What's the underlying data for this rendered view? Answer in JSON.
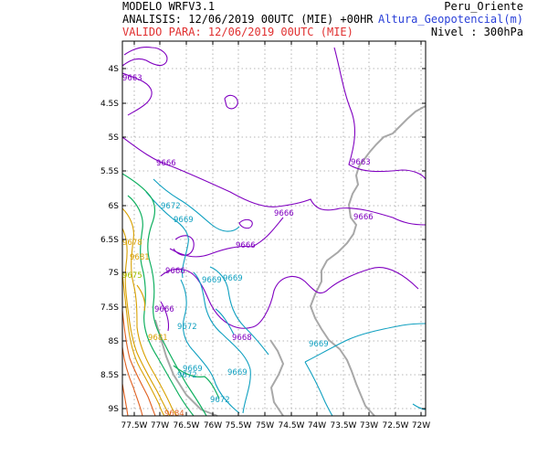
{
  "header": {
    "model": "MODELO WRFV3.1",
    "analysis": "ANALISIS: 12/06/2019 00UTC (MIE) +00HR",
    "valid": "VALIDO PARA: 12/06/2019 00UTC (MIE)",
    "region": "Peru_Oriente",
    "variable": "Altura_Geopotencial(m)",
    "level": "Nivel : 300hPa"
  },
  "axes": {
    "lat_labels": [
      "4S",
      "4.5S",
      "5S",
      "5.5S",
      "6S",
      "6.5S",
      "7S",
      "7.5S",
      "8S",
      "8.5S",
      "9S"
    ],
    "lon_labels": [
      "77.5W",
      "77W",
      "76.5W",
      "76W",
      "75.5W",
      "75W",
      "74.5W",
      "74W",
      "73.5W",
      "73W",
      "72.5W",
      "72W"
    ]
  },
  "contour_labels": [
    {
      "text": "9663",
      "color": "#8000c0"
    },
    {
      "text": "9666",
      "color": "#8000c0"
    },
    {
      "text": "9663",
      "color": "#8000c0"
    },
    {
      "text": "9666",
      "color": "#8000c0"
    },
    {
      "text": "9666",
      "color": "#8000c0"
    },
    {
      "text": "9672",
      "color": "#10a0c0"
    },
    {
      "text": "9669",
      "color": "#10a0c0"
    },
    {
      "text": "9666",
      "color": "#8000c0"
    },
    {
      "text": "9669",
      "color": "#10a0c0"
    },
    {
      "text": "9669",
      "color": "#10a0c0"
    },
    {
      "text": "9666",
      "color": "#8000c0"
    },
    {
      "text": "9666",
      "color": "#8000c0"
    },
    {
      "text": "9672",
      "color": "#10a0c0"
    },
    {
      "text": "9668",
      "color": "#8000c0"
    },
    {
      "text": "9669",
      "color": "#10a0c0"
    },
    {
      "text": "9669",
      "color": "#10a0c0"
    },
    {
      "text": "9672",
      "color": "#10a0c0"
    },
    {
      "text": "9669",
      "color": "#10a0c0"
    },
    {
      "text": "9672",
      "color": "#10a0c0"
    },
    {
      "text": "9681",
      "color": "#d8a000"
    },
    {
      "text": "9678",
      "color": "#d8a000"
    },
    {
      "text": "9675",
      "color": "#a0c000"
    },
    {
      "text": "9681",
      "color": "#d8a000"
    },
    {
      "text": "9684",
      "color": "#e06020"
    }
  ],
  "colors": {
    "contour_low": "#8000c0",
    "contour_mid": "#10a0c0",
    "contour_green": "#10b060",
    "contour_yellow": "#d8a000",
    "contour_orange": "#e06020",
    "border": "#a8a8a8",
    "grid": "#a0a0a0"
  }
}
